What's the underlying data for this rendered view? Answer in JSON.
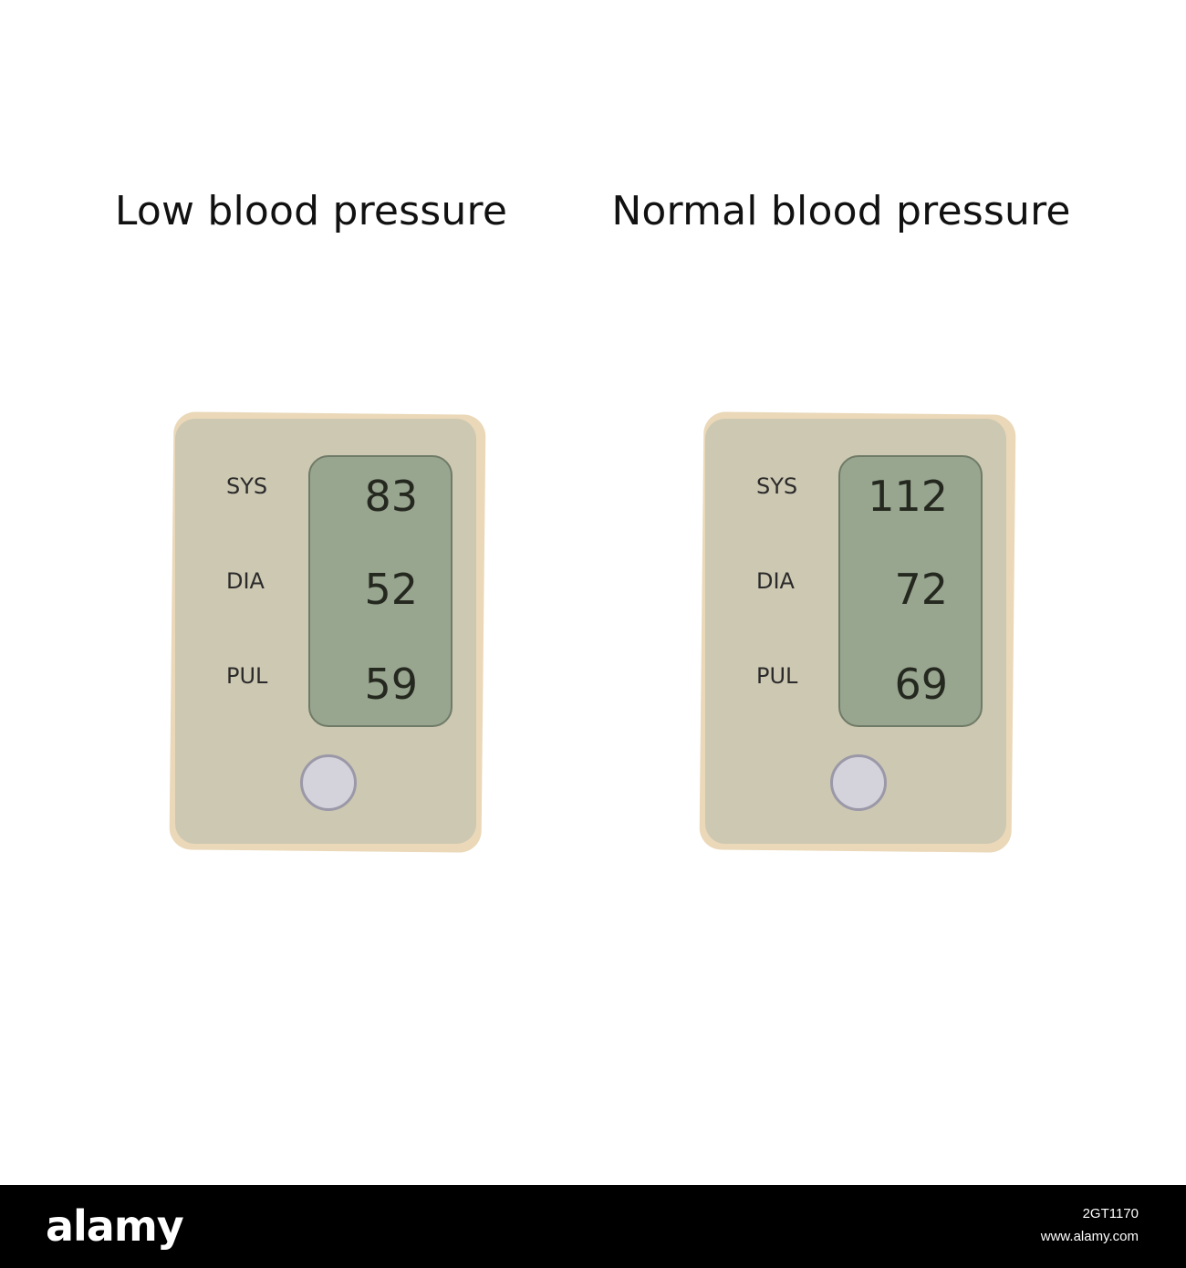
{
  "headings": {
    "low": "Low blood pressure",
    "normal": "Normal blood pressure"
  },
  "monitors": {
    "low": {
      "sys_label": "SYS",
      "dia_label": "DIA",
      "pul_label": "PUL",
      "sys_value": "83",
      "dia_value": "52",
      "pul_value": "59"
    },
    "normal": {
      "sys_label": "SYS",
      "dia_label": "DIA",
      "pul_label": "PUL",
      "sys_value": "112",
      "dia_value": "72",
      "pul_value": "69"
    }
  },
  "colors": {
    "monitor_shell": "#ead8b8",
    "monitor_face": "#cdc8b2",
    "lcd_screen": "#98a58f",
    "button": "#d4d3db"
  },
  "footer": {
    "brand": "alamy",
    "image_id": "2GT1170",
    "site": "www.alamy.com"
  }
}
